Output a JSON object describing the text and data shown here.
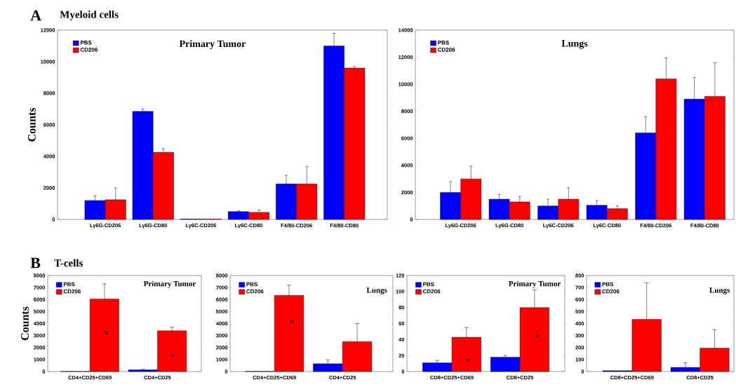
{
  "chart_data": [
    {
      "type": "bar",
      "title": "Primary Tumor",
      "ylabel": "Counts",
      "annotations": [
        "A",
        "Myeloid cells"
      ],
      "categories": [
        "Ly6G-CD206",
        "Ly6G-CD80",
        "Ly6C-CD206",
        "Ly6C-CD80",
        "F4/80-CD206",
        "F4/80-CD80"
      ],
      "series": [
        {
          "name": "PBS",
          "color": "#0000ff",
          "values": [
            1200,
            6850,
            30,
            500,
            2250,
            11000
          ],
          "errors": [
            [
              1200,
              1500
            ],
            [
              6850,
              7000
            ],
            null,
            [
              500,
              550
            ],
            [
              2250,
              2800
            ],
            [
              11000,
              11800
            ]
          ]
        },
        {
          "name": "CD206",
          "color": "#ff0000",
          "values": [
            1250,
            4250,
            30,
            450,
            2250,
            9600
          ],
          "errors": [
            [
              1250,
              2000
            ],
            [
              4250,
              4500
            ],
            null,
            [
              450,
              600
            ],
            [
              2250,
              3350
            ],
            [
              9600,
              9700
            ]
          ]
        }
      ],
      "ylim": [
        0,
        12000
      ],
      "yticks": [
        0,
        2000,
        4000,
        6000,
        8000,
        10000,
        12000
      ],
      "legend": "top left"
    },
    {
      "type": "bar",
      "title": "Lungs",
      "categories": [
        "Ly6G-CD206",
        "Ly6G-CD80",
        "Ly6C-CD206",
        "Ly6C-CD80",
        "F4/80-CD206",
        "F4/80-CD80"
      ],
      "series": [
        {
          "name": "PBS",
          "color": "#0000ff",
          "values": [
            2000,
            1500,
            1000,
            1050,
            6400,
            8900
          ],
          "errors": [
            [
              2000,
              2800
            ],
            [
              1500,
              1850
            ],
            [
              1000,
              1500
            ],
            [
              1050,
              1400
            ],
            [
              6400,
              7600
            ],
            [
              8900,
              10500
            ]
          ]
        },
        {
          "name": "CD206",
          "color": "#ff0000",
          "values": [
            3000,
            1300,
            1500,
            800,
            10400,
            9100
          ],
          "errors": [
            [
              3000,
              3950
            ],
            [
              1300,
              1700
            ],
            [
              1500,
              2350
            ],
            [
              800,
              1000
            ],
            [
              10400,
              11950
            ],
            [
              9100,
              11600
            ]
          ]
        }
      ],
      "ylim": [
        0,
        14000
      ],
      "yticks": [
        0,
        2000,
        4000,
        6000,
        8000,
        10000,
        12000,
        14000
      ],
      "legend": "top left"
    },
    {
      "type": "bar",
      "title": "Primary  Tumor",
      "ylabel": "Counts",
      "annotations": [
        "B",
        "T-cells",
        "*",
        "*"
      ],
      "categories": [
        "CD4+CD25+CD69",
        "CD4+CD25"
      ],
      "series": [
        {
          "name": "PBS",
          "color": "#0000ff",
          "values": [
            20,
            150
          ],
          "errors": [
            null,
            [
              150,
              180
            ]
          ]
        },
        {
          "name": "CD206",
          "color": "#ff0000",
          "values": [
            6050,
            3400
          ],
          "errors": [
            [
              6050,
              7300
            ],
            [
              3400,
              3700
            ]
          ]
        }
      ],
      "ylim": [
        0,
        8000
      ],
      "yticks": [
        0,
        1000,
        2000,
        3000,
        4000,
        5000,
        6000,
        7000,
        8000
      ],
      "legend": "top left"
    },
    {
      "type": "bar",
      "title": "Lungs",
      "annotations": [
        "*"
      ],
      "categories": [
        "CD4+CD25+CD69",
        "CD4+CD25"
      ],
      "series": [
        {
          "name": "PBS",
          "color": "#0000ff",
          "values": [
            20,
            650
          ],
          "errors": [
            null,
            [
              650,
              980
            ]
          ]
        },
        {
          "name": "CD206",
          "color": "#ff0000",
          "values": [
            6350,
            2500
          ],
          "errors": [
            [
              6350,
              7200
            ],
            [
              2500,
              4000
            ]
          ]
        }
      ],
      "ylim": [
        0,
        8000
      ],
      "yticks": [
        0,
        1000,
        2000,
        3000,
        4000,
        5000,
        6000,
        7000,
        8000
      ],
      "legend": "top left"
    },
    {
      "type": "bar",
      "title": "Primary  Tumor",
      "annotations": [
        "*",
        "*"
      ],
      "categories": [
        "CD8+CD25+CD69",
        "CD8+CD25"
      ],
      "series": [
        {
          "name": "PBS",
          "color": "#0000ff",
          "values": [
            11,
            18
          ],
          "errors": [
            [
              11,
              14
            ],
            [
              18,
              20
            ]
          ]
        },
        {
          "name": "CD206",
          "color": "#ff0000",
          "values": [
            43,
            80
          ],
          "errors": [
            [
              43,
              55
            ],
            [
              80,
              102
            ]
          ]
        }
      ],
      "ylim": [
        0,
        120
      ],
      "yticks": [
        0,
        20,
        40,
        60,
        80,
        100,
        120
      ],
      "legend": "top left"
    },
    {
      "type": "bar",
      "title": "Lungs",
      "categories": [
        "CD8+CD25+CD69",
        "CD8+CD25"
      ],
      "series": [
        {
          "name": "PBS",
          "color": "#0000ff",
          "values": [
            8,
            35
          ],
          "errors": [
            null,
            [
              35,
              72
            ]
          ]
        },
        {
          "name": "CD206",
          "color": "#ff0000",
          "values": [
            435,
            195
          ],
          "errors": [
            [
              435,
              740
            ],
            [
              195,
              350
            ]
          ]
        }
      ],
      "ylim": [
        0,
        800
      ],
      "yticks": [
        0,
        100,
        200,
        300,
        400,
        500,
        600,
        700,
        800
      ],
      "legend": "top left"
    }
  ]
}
